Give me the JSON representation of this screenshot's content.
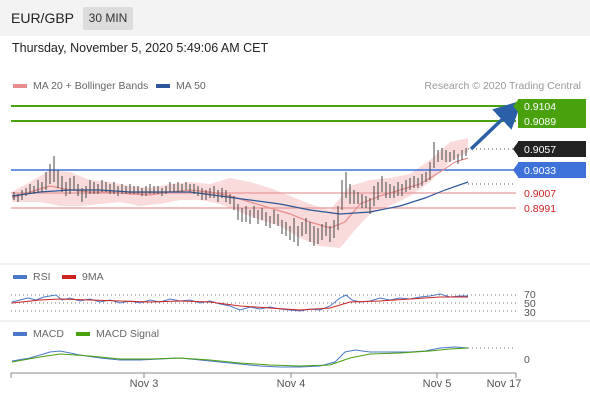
{
  "header": {
    "symbol": "EUR/GBP",
    "timeframe": "30 MIN",
    "datetime": "Thursday, November 5, 2020 5:49:06 AM CET"
  },
  "main_legend": {
    "items": [
      {
        "label": "MA 20 + Bollinger Bands",
        "color": "#e88d8d"
      },
      {
        "label": "MA 50",
        "color": "#2b579a"
      }
    ],
    "credit": "Research © 2020 Trading Central"
  },
  "levels": {
    "resistance": [
      {
        "value": "0.9104",
        "color": "#4aa10e"
      },
      {
        "value": "0.9089",
        "color": "#4aa10e"
      }
    ],
    "last_price": {
      "value": "0.9057",
      "color": "#222222"
    },
    "pivot": {
      "value": "0.9033",
      "color": "#3f72d9"
    },
    "support": [
      {
        "value": "0.9007",
        "color": "#cc2222"
      },
      {
        "value": "0.8991",
        "color": "#cc2222"
      }
    ]
  },
  "rsi_panel": {
    "legend": [
      {
        "label": "RSI",
        "color": "#4b78c8"
      },
      {
        "label": "9MA",
        "color": "#cc2222"
      }
    ],
    "levels": [
      "70",
      "50",
      "30"
    ]
  },
  "macd_panel": {
    "legend": [
      {
        "label": "MACD",
        "color": "#4b78c8"
      },
      {
        "label": "MACD Signal",
        "color": "#4aa10e"
      }
    ],
    "zero_label": "0"
  },
  "x_axis": {
    "labels": [
      "Nov 3",
      "Nov 4",
      "Nov 5",
      "Nov 17"
    ]
  }
}
